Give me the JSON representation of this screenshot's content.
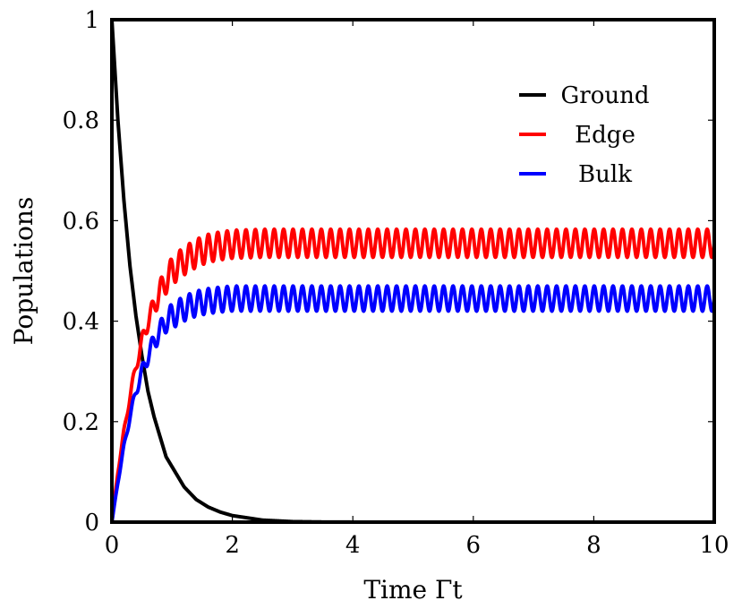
{
  "chart_data": {
    "type": "line",
    "xlabel": "Time Γt",
    "ylabel": "Populations",
    "xlim": [
      0,
      10
    ],
    "ylim": [
      0,
      1
    ],
    "xticks": [
      0,
      2,
      4,
      6,
      8,
      10
    ],
    "yticks": [
      0,
      0.2,
      0.4,
      0.6,
      0.8,
      1
    ],
    "grid": false,
    "legend_position": "top-right",
    "x": [
      0,
      0.1,
      0.2,
      0.3,
      0.4,
      0.5,
      0.6,
      0.7,
      0.8,
      0.9,
      1.0,
      1.2,
      1.4,
      1.6,
      1.8,
      2.0,
      2.5,
      3.0,
      3.5,
      4.0,
      5.0,
      6.0,
      7.0,
      8.0,
      9.0,
      10.0
    ],
    "series": [
      {
        "name": "Ground",
        "color": "#000000",
        "values": [
          1.0,
          0.8,
          0.64,
          0.51,
          0.41,
          0.33,
          0.26,
          0.21,
          0.17,
          0.13,
          0.11,
          0.07,
          0.045,
          0.03,
          0.02,
          0.013,
          0.004,
          0.001,
          0.0003,
          0.0001,
          0.0,
          0.0,
          0.0,
          0.0,
          0.0,
          0.0
        ]
      },
      {
        "name": "Edge",
        "color": "#ff0000",
        "values": [
          0.0,
          0.1,
          0.18,
          0.25,
          0.31,
          0.36,
          0.4,
          0.43,
          0.46,
          0.48,
          0.5,
          0.52,
          0.535,
          0.545,
          0.55,
          0.553,
          0.555,
          0.555,
          0.555,
          0.555,
          0.555,
          0.555,
          0.555,
          0.555,
          0.555,
          0.555
        ],
        "oscillation_amplitude": 0.028
      },
      {
        "name": "Bulk",
        "color": "#0000ff",
        "values": [
          0.0,
          0.08,
          0.15,
          0.21,
          0.26,
          0.3,
          0.33,
          0.36,
          0.38,
          0.4,
          0.41,
          0.425,
          0.435,
          0.44,
          0.443,
          0.445,
          0.445,
          0.445,
          0.445,
          0.445,
          0.445,
          0.445,
          0.445,
          0.445,
          0.445,
          0.445
        ],
        "oscillation_amplitude": 0.025
      }
    ]
  }
}
